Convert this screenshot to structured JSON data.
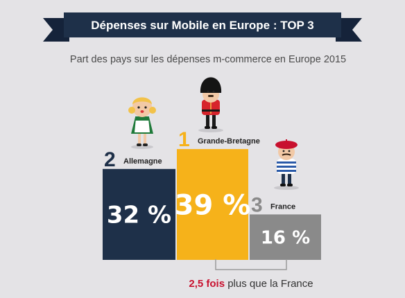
{
  "banner": {
    "title": "Dépenses sur Mobile en Europe : TOP 3"
  },
  "subtitle": "Part des pays sur les dépenses m-commerce en Europe 2015",
  "colors": {
    "navy": "#1e3049",
    "gold": "#f6b21a",
    "grey": "#8a8a8a",
    "accent_red": "#c8102e"
  },
  "chart_data": {
    "type": "bar",
    "title": "Dépenses sur Mobile en Europe : TOP 3",
    "subtitle": "Part des pays sur les dépenses m-commerce en Europe 2015",
    "categories": [
      "Allemagne",
      "Grande-Bretagne",
      "France"
    ],
    "ranks": [
      "2",
      "1",
      "3"
    ],
    "values": [
      32,
      39,
      16
    ],
    "value_labels": [
      "32 %",
      "39 %",
      "16 %"
    ],
    "unit": "%",
    "colors": [
      "#1e3049",
      "#f6b21a",
      "#8a8a8a"
    ],
    "ylim": [
      0,
      40
    ],
    "grid": false,
    "legend": "none"
  },
  "comparison": {
    "highlight": "2,5 fois",
    "rest": " plus que la France"
  }
}
